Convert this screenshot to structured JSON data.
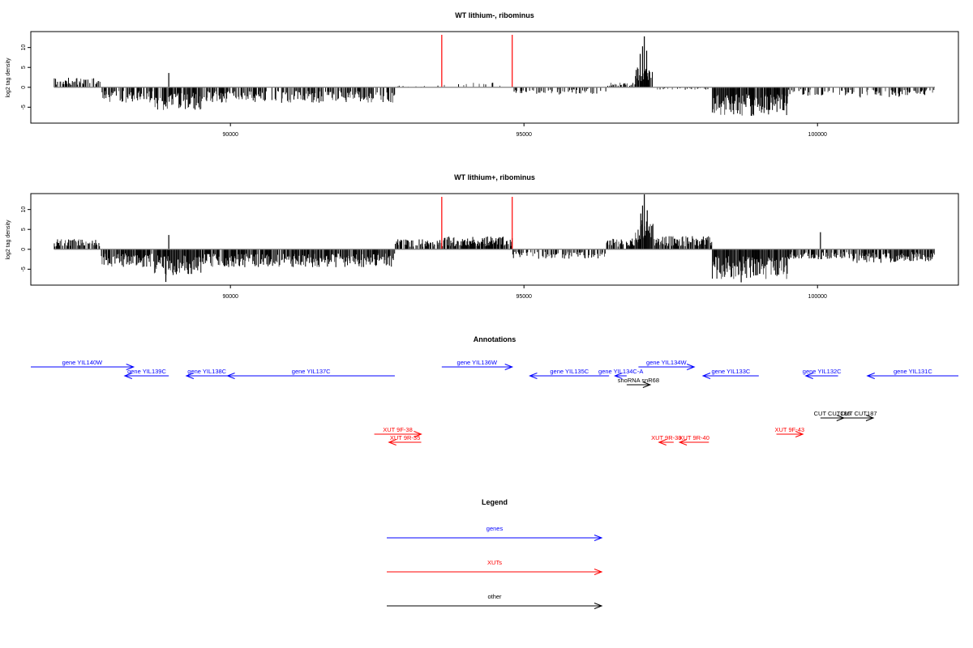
{
  "colors": {
    "genes": "#0000ff",
    "xuts": "#ff0000",
    "other": "#000000",
    "marker": "#ff0000",
    "axis": "#000000",
    "baseline": "#808080"
  },
  "chart_data": [
    {
      "type": "bar",
      "panel": "track1",
      "title": "WT lithium-, ribominus",
      "ylabel": "log2 tag density",
      "xlim": [
        86600,
        102400
      ],
      "ylim": [
        -9,
        14
      ],
      "yticks": [
        -5,
        0,
        5,
        10
      ],
      "xticks": [
        90000,
        95000,
        100000
      ],
      "xtick_labels": [
        "90000",
        "95000",
        "100000"
      ],
      "marker_lines": [
        93600,
        94800
      ],
      "x_range": [
        87000,
        102000
      ],
      "seed": 7,
      "level_segments": [
        {
          "start": 87000,
          "end": 87800,
          "mean": 1.6,
          "density": 0.55
        },
        {
          "start": 87800,
          "end": 88700,
          "mean": -2.6,
          "density": 0.6
        },
        {
          "start": 88700,
          "end": 89500,
          "mean": -3.8,
          "density": 0.85
        },
        {
          "start": 89500,
          "end": 92800,
          "mean": -2.6,
          "density": 0.6
        },
        {
          "start": 92800,
          "end": 93600,
          "mean": 0.3,
          "density": 0.1
        },
        {
          "start": 93600,
          "end": 94800,
          "mean": 0.8,
          "density": 0.12
        },
        {
          "start": 94800,
          "end": 96400,
          "mean": -1.2,
          "density": 0.35
        },
        {
          "start": 96400,
          "end": 96900,
          "mean": 0.8,
          "density": 0.35
        },
        {
          "start": 96900,
          "end": 97200,
          "mean": 3.5,
          "density": 0.95
        },
        {
          "start": 97200,
          "end": 98200,
          "mean": -0.4,
          "density": 0.15
        },
        {
          "start": 98200,
          "end": 99500,
          "mean": -4.8,
          "density": 0.95
        },
        {
          "start": 99500,
          "end": 100600,
          "mean": -1.4,
          "density": 0.35
        },
        {
          "start": 100600,
          "end": 101500,
          "mean": -1.7,
          "density": 0.45
        },
        {
          "start": 101500,
          "end": 102000,
          "mean": -1.3,
          "density": 0.4
        }
      ],
      "spikes": [
        [
          97050,
          12.8
        ],
        [
          97020,
          10.3
        ],
        [
          96980,
          8.4
        ],
        [
          97090,
          9.2
        ],
        [
          88950,
          3.6
        ],
        [
          88900,
          -4.8
        ]
      ]
    },
    {
      "type": "bar",
      "panel": "track2",
      "title": "WT lithium+, ribominus",
      "ylabel": "log2 tag density",
      "xlim": [
        86600,
        102400
      ],
      "ylim": [
        -9,
        14
      ],
      "yticks": [
        -5,
        0,
        5,
        10
      ],
      "xticks": [
        90000,
        95000,
        100000
      ],
      "xtick_labels": [
        "90000",
        "95000",
        "100000"
      ],
      "marker_lines": [
        93600,
        94800
      ],
      "x_range": [
        87000,
        102000
      ],
      "seed": 13,
      "level_segments": [
        {
          "start": 87000,
          "end": 87800,
          "mean": 1.7,
          "density": 0.7
        },
        {
          "start": 87800,
          "end": 88700,
          "mean": -3.0,
          "density": 0.85
        },
        {
          "start": 88700,
          "end": 89500,
          "mean": -4.3,
          "density": 0.95
        },
        {
          "start": 89500,
          "end": 92800,
          "mean": -3.0,
          "density": 0.85
        },
        {
          "start": 92800,
          "end": 93600,
          "mean": 1.7,
          "density": 0.7
        },
        {
          "start": 93600,
          "end": 94800,
          "mean": 2.2,
          "density": 0.9
        },
        {
          "start": 94800,
          "end": 96400,
          "mean": -1.6,
          "density": 0.6
        },
        {
          "start": 96400,
          "end": 96900,
          "mean": 1.8,
          "density": 0.7
        },
        {
          "start": 96900,
          "end": 97200,
          "mean": 5.0,
          "density": 1.0
        },
        {
          "start": 97200,
          "end": 98200,
          "mean": 2.2,
          "density": 0.9
        },
        {
          "start": 98200,
          "end": 99500,
          "mean": -5.0,
          "density": 1.0
        },
        {
          "start": 99500,
          "end": 100600,
          "mean": -1.7,
          "density": 0.6
        },
        {
          "start": 100600,
          "end": 101500,
          "mean": -2.3,
          "density": 0.8
        },
        {
          "start": 101500,
          "end": 102000,
          "mean": -2.0,
          "density": 0.75
        }
      ],
      "spikes": [
        [
          97050,
          13.8
        ],
        [
          97020,
          11.0
        ],
        [
          96990,
          9.0
        ],
        [
          97100,
          9.8
        ],
        [
          88950,
          3.6
        ],
        [
          88900,
          -8.2
        ],
        [
          98700,
          -8.3
        ],
        [
          100050,
          4.3
        ]
      ]
    }
  ],
  "annotations": {
    "title": "Annotations",
    "xlim": [
      86600,
      102400
    ],
    "features": [
      {
        "label": "gene YIL140W",
        "start": 86600,
        "end": 88350,
        "strand": "+",
        "category": "genes",
        "row": 0
      },
      {
        "label": "gene YIL139C",
        "start": 88200,
        "end": 88950,
        "strand": "-",
        "category": "genes",
        "row": 1
      },
      {
        "label": "gene YIL138C",
        "start": 89250,
        "end": 89950,
        "strand": "-",
        "category": "genes",
        "row": 1
      },
      {
        "label": "gene YIL137C",
        "start": 89950,
        "end": 92800,
        "strand": "-",
        "category": "genes",
        "row": 1
      },
      {
        "label": "gene YIL136W",
        "start": 93600,
        "end": 94800,
        "strand": "+",
        "category": "genes",
        "row": 0
      },
      {
        "label": "gene YIL135C",
        "start": 95100,
        "end": 96450,
        "strand": "-",
        "category": "genes",
        "row": 1
      },
      {
        "label": "gene YIL134C-A",
        "start": 96550,
        "end": 96750,
        "strand": "-",
        "category": "genes",
        "row": 1
      },
      {
        "label": "gene YIL134W",
        "start": 96950,
        "end": 97900,
        "strand": "+",
        "category": "genes",
        "row": 0
      },
      {
        "label": "gene YIL133C",
        "start": 98050,
        "end": 99000,
        "strand": "-",
        "category": "genes",
        "row": 1
      },
      {
        "label": "gene YIL132C",
        "start": 99800,
        "end": 100350,
        "strand": "-",
        "category": "genes",
        "row": 1
      },
      {
        "label": "gene YIL131C",
        "start": 100850,
        "end": 102400,
        "strand": "-",
        "category": "genes",
        "row": 1
      },
      {
        "label": "snoRNA snR68",
        "start": 96750,
        "end": 97150,
        "strand": "+",
        "category": "other",
        "row": 2
      },
      {
        "label": "CUT CUT186",
        "start": 100050,
        "end": 100450,
        "strand": "+",
        "category": "other",
        "row": 3
      },
      {
        "label": "CUT CUT187",
        "start": 100450,
        "end": 100950,
        "strand": "+",
        "category": "other",
        "row": 3
      },
      {
        "label": "XUT 9F-38",
        "start": 92450,
        "end": 93250,
        "strand": "+",
        "category": "xuts",
        "row": 4
      },
      {
        "label": "XUT 9R-35",
        "start": 92700,
        "end": 93250,
        "strand": "-",
        "category": "xuts",
        "row": 5
      },
      {
        "label": "XUT 9R-38",
        "start": 97300,
        "end": 97550,
        "strand": "-",
        "category": "xuts",
        "row": 5
      },
      {
        "label": "XUT 9R-40",
        "start": 97650,
        "end": 98150,
        "strand": "-",
        "category": "xuts",
        "row": 5
      },
      {
        "label": "XUT 9F-43",
        "start": 99300,
        "end": 99750,
        "strand": "+",
        "category": "xuts",
        "row": 4
      }
    ]
  },
  "legend": {
    "title": "Legend",
    "items": [
      {
        "label": "genes",
        "category": "genes"
      },
      {
        "label": "XUTs",
        "category": "xuts"
      },
      {
        "label": "other",
        "category": "other"
      }
    ]
  }
}
